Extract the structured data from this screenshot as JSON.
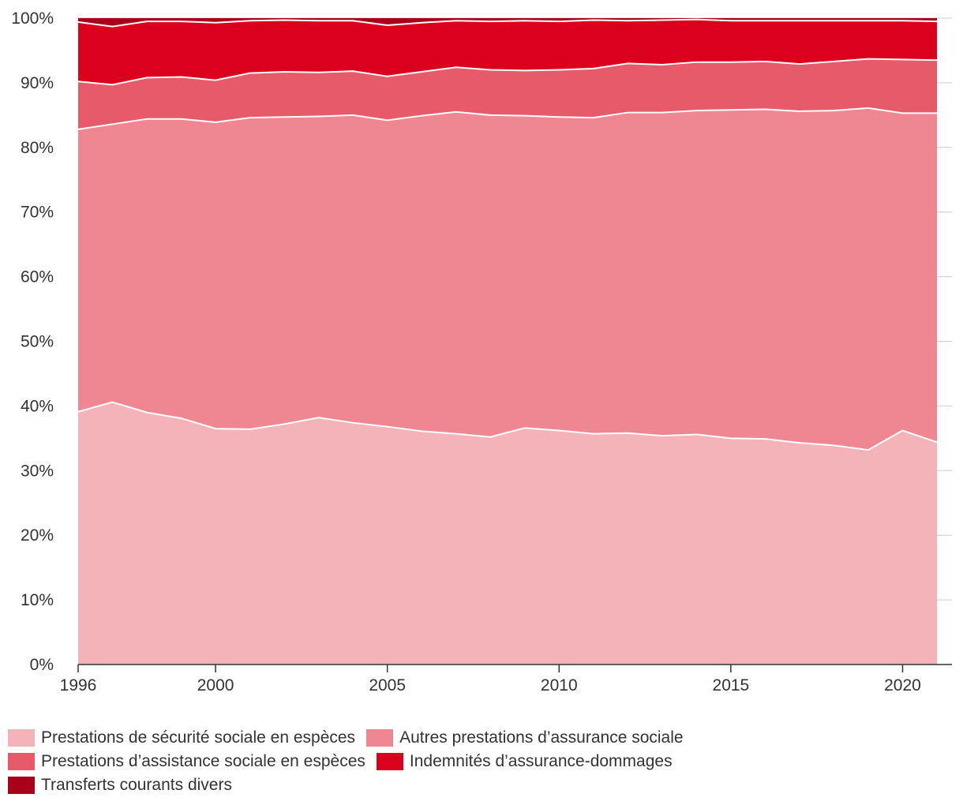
{
  "chart_data": {
    "type": "area",
    "stacked": true,
    "x": [
      1996,
      1997,
      1998,
      1999,
      2000,
      2001,
      2002,
      2003,
      2004,
      2005,
      2006,
      2007,
      2008,
      2009,
      2010,
      2011,
      2012,
      2013,
      2014,
      2015,
      2016,
      2017,
      2018,
      2019,
      2020,
      2021
    ],
    "xticks": [
      1996,
      2000,
      2005,
      2010,
      2015,
      2020
    ],
    "yticks": [
      0,
      10,
      20,
      30,
      40,
      50,
      60,
      70,
      80,
      90,
      100
    ],
    "ytick_suffix": "%",
    "ylim": [
      0,
      100
    ],
    "series": [
      {
        "name": "Prestations de sécurité sociale en espèces",
        "color": "#f4b3b9",
        "values": [
          39.1,
          40.6,
          39.0,
          38.1,
          36.5,
          36.4,
          37.2,
          38.2,
          37.4,
          36.8,
          36.1,
          35.7,
          35.2,
          36.6,
          36.2,
          35.7,
          35.8,
          35.4,
          35.6,
          35.0,
          34.9,
          34.3,
          33.9,
          33.2,
          36.2,
          34.4
        ]
      },
      {
        "name": "Autres prestations d’assurance sociale",
        "color": "#ef8793",
        "values": [
          43.7,
          43.0,
          45.4,
          46.3,
          47.4,
          48.2,
          47.5,
          46.6,
          47.6,
          47.4,
          48.8,
          49.8,
          49.8,
          48.3,
          48.5,
          48.9,
          49.6,
          50.0,
          50.1,
          50.8,
          51.0,
          51.3,
          51.8,
          52.9,
          49.1,
          50.9
        ]
      },
      {
        "name": "Prestations d’assistance sociale en espèces",
        "color": "#e65a6a",
        "values": [
          7.4,
          6.1,
          6.4,
          6.5,
          6.5,
          6.9,
          7.0,
          6.8,
          6.8,
          6.8,
          6.8,
          6.9,
          7.0,
          7.0,
          7.3,
          7.6,
          7.6,
          7.4,
          7.5,
          7.4,
          7.4,
          7.3,
          7.6,
          7.6,
          8.3,
          8.2
        ]
      },
      {
        "name": "Indemnités d’assurance-dommages",
        "color": "#db001b",
        "values": [
          9.2,
          9.0,
          8.7,
          8.6,
          8.9,
          8.1,
          8.0,
          8.0,
          7.8,
          7.9,
          7.6,
          7.2,
          7.5,
          7.7,
          7.5,
          7.5,
          6.6,
          6.9,
          6.6,
          6.4,
          6.3,
          6.7,
          6.3,
          5.9,
          6.0,
          6.0
        ]
      },
      {
        "name": "Transferts courants divers",
        "color": "#a8001a",
        "values": [
          0.6,
          1.3,
          0.5,
          0.5,
          0.7,
          0.4,
          0.3,
          0.4,
          0.4,
          1.1,
          0.7,
          0.4,
          0.5,
          0.4,
          0.5,
          0.3,
          0.4,
          0.3,
          0.2,
          0.4,
          0.4,
          0.4,
          0.4,
          0.4,
          0.4,
          0.5
        ]
      }
    ]
  }
}
